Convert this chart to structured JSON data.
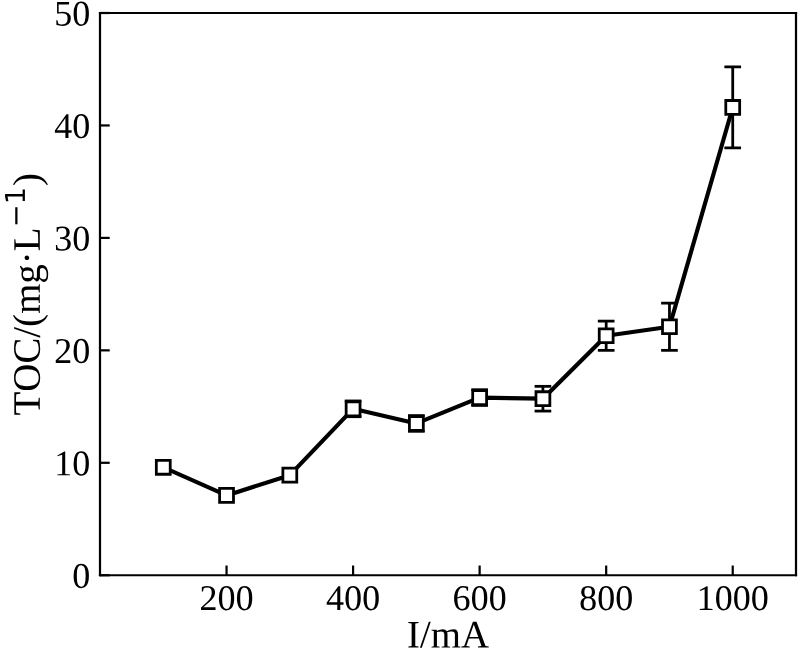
{
  "chart_data": {
    "type": "line",
    "xlabel": "I/mA",
    "ylabel": "TOC/(mg·L$^{−1}$)",
    "x": [
      100,
      200,
      300,
      400,
      500,
      600,
      700,
      800,
      900,
      1000
    ],
    "values": [
      9.6,
      7.1,
      8.9,
      14.8,
      13.5,
      15.8,
      15.7,
      21.3,
      22.1,
      41.6
    ],
    "errors": [
      null,
      null,
      null,
      0.7,
      0.7,
      0.7,
      1.1,
      1.3,
      2.1,
      3.6
    ],
    "color": "#000000",
    "marker": "square",
    "line_style": "solid",
    "xlim": [
      0,
      1100
    ],
    "xticks": [
      200,
      400,
      600,
      800,
      1000
    ],
    "ylim": [
      0,
      50
    ],
    "yticks": [
      0,
      10,
      20,
      30,
      40,
      50
    ],
    "grid": false,
    "legend": false
  }
}
